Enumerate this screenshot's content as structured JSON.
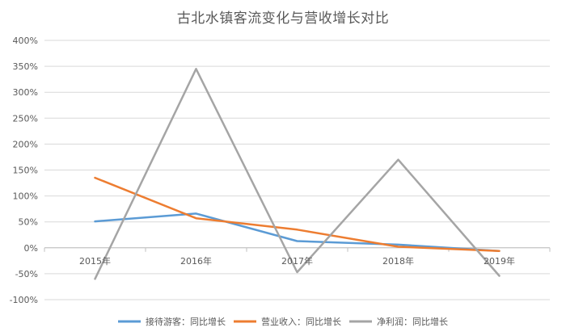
{
  "chart_data": {
    "type": "line",
    "title": "古北水镇客流变化与营收增长对比",
    "xlabel": "",
    "ylabel": "",
    "categories": [
      "2015年",
      "2016年",
      "2017年",
      "2018年",
      "2019年"
    ],
    "yticks": [
      "-100%",
      "-50%",
      "0%",
      "50%",
      "100%",
      "150%",
      "200%",
      "250%",
      "300%",
      "350%",
      "400%"
    ],
    "ylim": [
      -100,
      400
    ],
    "grid": true,
    "legend_position": "bottom",
    "series": [
      {
        "name": "接待游客：同比增长",
        "color": "#5B9BD5",
        "values": [
          51,
          66,
          13,
          6,
          -6
        ]
      },
      {
        "name": "营业收入：同比增长",
        "color": "#ED7D31",
        "values": [
          135,
          57,
          35,
          2,
          -6
        ]
      },
      {
        "name": "净利润：同比增长",
        "color": "#A5A5A5",
        "values": [
          -60,
          345,
          -47,
          170,
          -54
        ]
      }
    ]
  }
}
